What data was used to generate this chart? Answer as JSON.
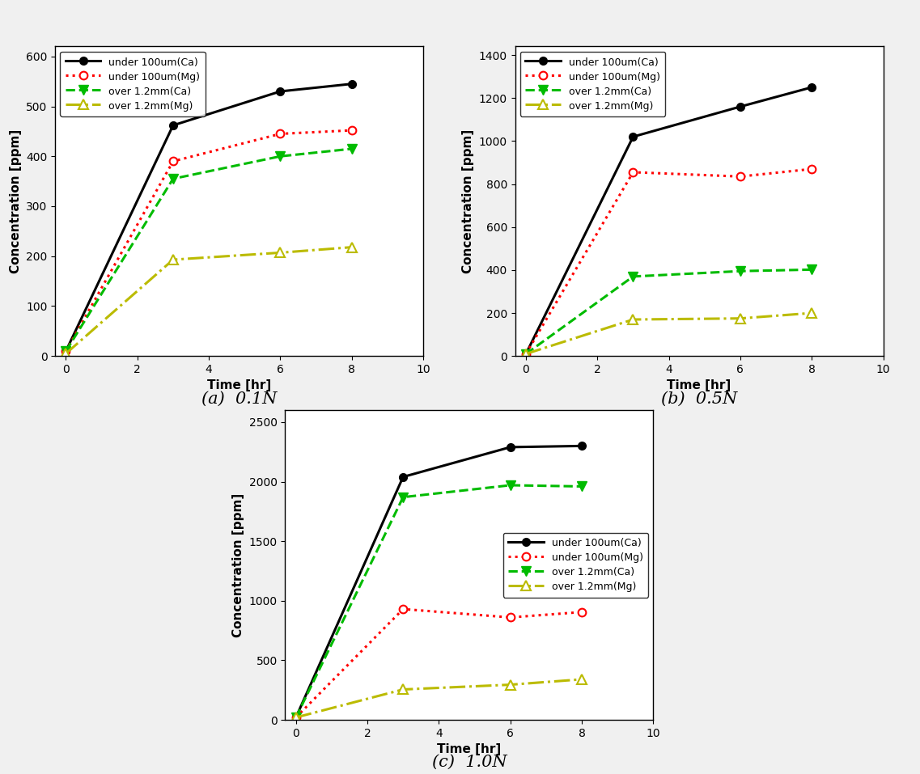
{
  "subplot_labels": [
    "(a)  0.1N",
    "(b)  0.5N",
    "(c)  1.0N"
  ],
  "time": [
    0,
    3,
    6,
    8
  ],
  "panel_a": {
    "under100_Ca": [
      10,
      462,
      530,
      545
    ],
    "under100_Mg": [
      10,
      390,
      445,
      452
    ],
    "over12_Ca": [
      10,
      355,
      400,
      415
    ],
    "over12_Mg": [
      5,
      193,
      207,
      218
    ],
    "ylim": [
      0,
      620
    ],
    "yticks": [
      0,
      100,
      200,
      300,
      400,
      500,
      600
    ]
  },
  "panel_b": {
    "under100_Ca": [
      10,
      1020,
      1160,
      1250
    ],
    "under100_Mg": [
      10,
      855,
      835,
      870
    ],
    "over12_Ca": [
      10,
      370,
      395,
      402
    ],
    "over12_Mg": [
      10,
      170,
      175,
      200
    ],
    "ylim": [
      0,
      1440
    ],
    "yticks": [
      0,
      200,
      400,
      600,
      800,
      1000,
      1200,
      1400
    ]
  },
  "panel_c": {
    "under100_Ca": [
      20,
      2040,
      2290,
      2300
    ],
    "under100_Mg": [
      20,
      930,
      860,
      905
    ],
    "over12_Ca": [
      20,
      1870,
      1970,
      1960
    ],
    "over12_Mg": [
      20,
      255,
      295,
      340
    ],
    "ylim": [
      0,
      2600
    ],
    "yticks": [
      0,
      500,
      1000,
      1500,
      2000,
      2500
    ]
  },
  "colors": {
    "under100_Ca": "#000000",
    "under100_Mg": "#ff0000",
    "over12_Ca": "#00bb00",
    "over12_Mg": "#bbbb00"
  },
  "legend_labels": [
    "under 100um(Ca)",
    "under 100um(Mg)",
    "over 1.2mm(Ca)",
    "over 1.2mm(Mg)"
  ],
  "xlabel": "Time [hr]",
  "ylabel": "Concentration [ppm]",
  "xlim": [
    -0.3,
    10
  ],
  "xticks": [
    0,
    2,
    4,
    6,
    8,
    10
  ]
}
